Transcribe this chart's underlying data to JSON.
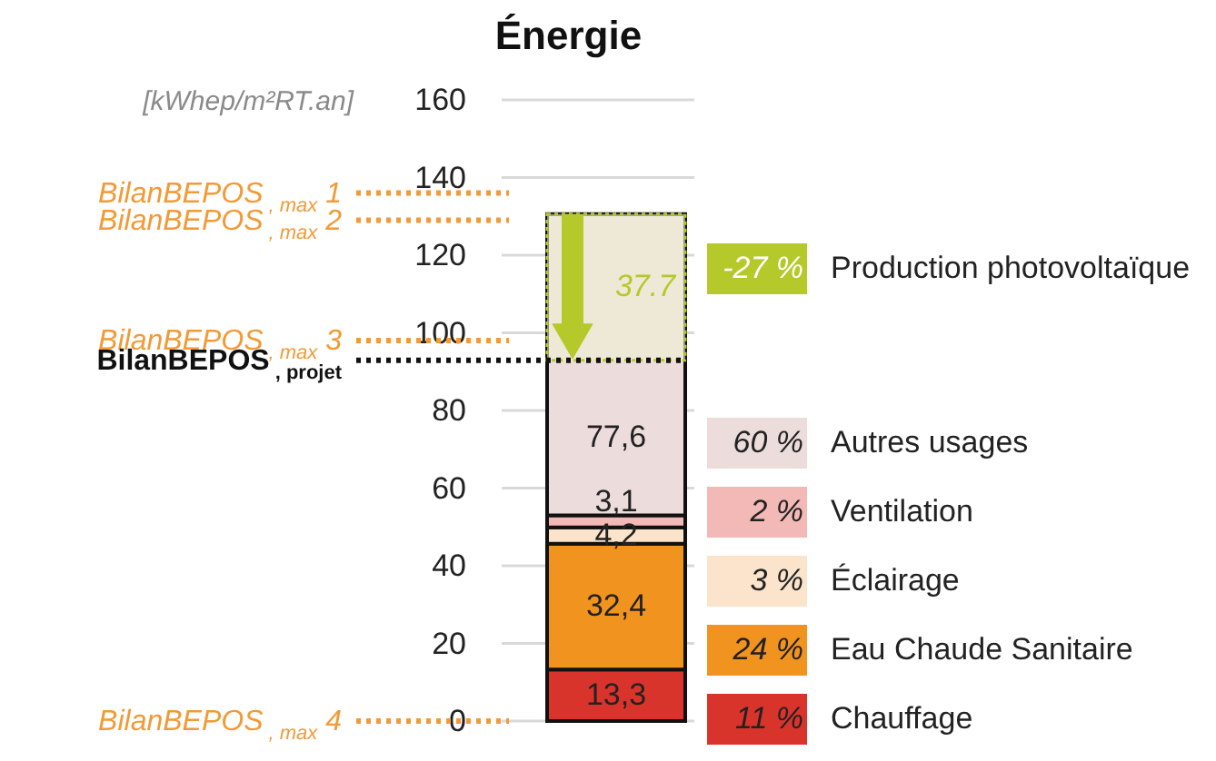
{
  "chart_data": {
    "type": "bar",
    "title": "Énergie",
    "ylabel": "[kWhep/m²RT.an]",
    "categories": [
      null
    ],
    "stacked": true,
    "ylim": [
      0,
      160
    ],
    "yticks": [
      0,
      20,
      40,
      60,
      80,
      100,
      120,
      140,
      160
    ],
    "grid": "y",
    "legend": "right",
    "series": [
      {
        "name": "Chauffage",
        "color": "#d9342b",
        "values": [
          13.3
        ],
        "value_labels": [
          "13,3"
        ]
      },
      {
        "name": "Eau Chaude Sanitaire",
        "color": "#f0931f",
        "values": [
          32.4
        ],
        "value_labels": [
          "32,4"
        ]
      },
      {
        "name": "Éclairage",
        "color": "#fbe4cb",
        "values": [
          4.2
        ],
        "value_labels": [
          "4,2"
        ]
      },
      {
        "name": "Ventilation",
        "color": "#f3b9b6",
        "values": [
          3.1
        ],
        "value_labels": [
          "3,1"
        ]
      },
      {
        "name": "Autres usages",
        "color": "#ecdcdc",
        "values": [
          77.6
        ],
        "value_labels": [
          "77,6"
        ]
      }
    ],
    "bands": [
      {
        "axis": "y",
        "from": 92.9,
        "to": 130.6,
        "label": "37.7",
        "color": "#b5c92b"
      }
    ],
    "ref_lines": [
      {
        "axis": "y",
        "value": 136,
        "label": "BilanBEPOS$_{, max}$ 1",
        "color": "#f39a36",
        "line_style": "dotted"
      },
      {
        "axis": "y",
        "value": 129,
        "label": "BilanBEPOS$_{, max}$ 2",
        "color": "#f39a36",
        "line_style": "dotted"
      },
      {
        "axis": "y",
        "value": 98,
        "label": "BilanBEPOS$_{, max}$ 3",
        "color": "#f39a36",
        "line_style": "dotted"
      },
      {
        "axis": "y",
        "value": 92.9,
        "label": "BilanBEPOS$_{, projet}$",
        "color": "#111111",
        "line_style": "dotted"
      },
      {
        "axis": "y",
        "value": 0,
        "label": "BilanBEPOS$_{, max}$ 4",
        "color": "#f39a36",
        "line_style": "dotted"
      }
    ],
    "annotations": [
      "-27 %",
      "Production photovoltaïque",
      "60 %",
      "2 %",
      "3 %",
      "24 %",
      "11 %"
    ]
  }
}
